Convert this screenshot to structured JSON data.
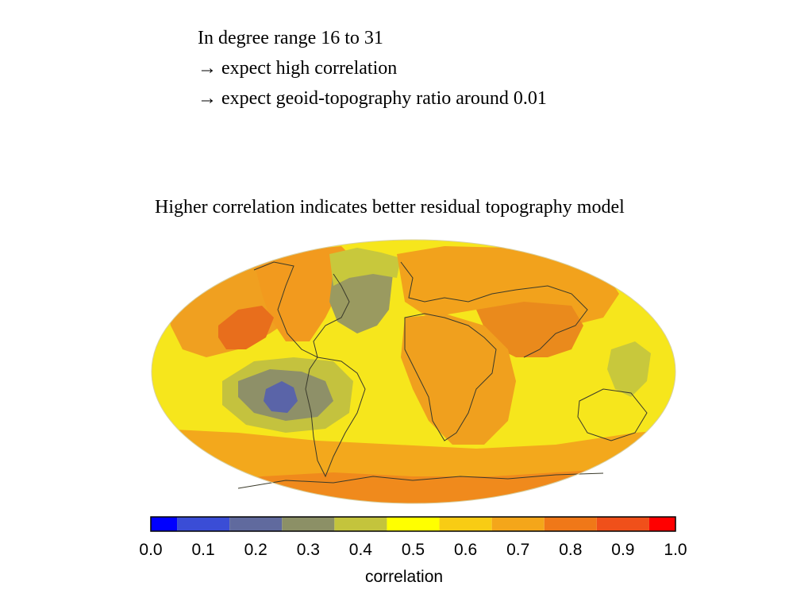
{
  "text": {
    "line1": "In degree range 16 to 31",
    "line2": "→ expect high correlation",
    "line3": "→ expect geoid-topography ratio around 0.01",
    "caption": "Higher correlation indicates better residual topography model"
  },
  "colorbar": {
    "label": "correlation",
    "ticks": [
      "0.0",
      "0.1",
      "0.2",
      "0.3",
      "0.4",
      "0.5",
      "0.6",
      "0.7",
      "0.8",
      "0.9",
      "1.0"
    ],
    "colors": [
      "#0000ff",
      "#3a4dd6",
      "#606a9e",
      "#8c9066",
      "#c4c43c",
      "#ffff00",
      "#f8cc14",
      "#f4a61a",
      "#f07818",
      "#f0501a",
      "#ff0000"
    ]
  },
  "map": {
    "projection": "Mollweide",
    "background_color": "#f6e61c",
    "regions": [
      {
        "name": "north-pacific-orange",
        "color": "#f0a020"
      },
      {
        "name": "north-america-orange",
        "color": "#f29a1e"
      },
      {
        "name": "north-pacific-red",
        "color": "#e86e1c"
      },
      {
        "name": "north-atlantic-olive",
        "color": "#9a9a60"
      },
      {
        "name": "north-atlantic-yellowgreen",
        "color": "#c8c83c"
      },
      {
        "name": "eurasia-orange",
        "color": "#f2a21c"
      },
      {
        "name": "asia-darkorange",
        "color": "#ea8a1c"
      },
      {
        "name": "africa-orange",
        "color": "#f0a01e"
      },
      {
        "name": "east-pacific-yellowgreen",
        "color": "#c4c23e"
      },
      {
        "name": "east-pacific-olive",
        "color": "#8e9068"
      },
      {
        "name": "east-pacific-blue",
        "color": "#5a64a8"
      },
      {
        "name": "south-band-orange",
        "color": "#f3a81c"
      },
      {
        "name": "antarctic-orange",
        "color": "#f08a1c"
      },
      {
        "name": "west-pacific-yellowgreen",
        "color": "#c8c83c"
      }
    ]
  }
}
